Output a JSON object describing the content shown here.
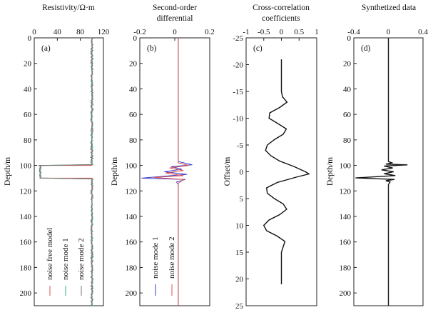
{
  "figure": {
    "caption_hidden": true
  },
  "chart_data": [
    {
      "id": "a",
      "type": "line",
      "panel_label": "(a)",
      "title": "Resistivity/Ω·m",
      "title2": "",
      "ylabel": "Depth/m",
      "xlim": [
        0,
        120
      ],
      "ylim": [
        0,
        210
      ],
      "xticks": [
        "0",
        "40",
        "80",
        "120"
      ],
      "xtick_values": [
        0,
        40,
        80,
        120
      ],
      "yticks": [
        "0",
        "20",
        "40",
        "60",
        "80",
        "100",
        "120",
        "140",
        "160",
        "180",
        "200"
      ],
      "ytick_values": [
        0,
        20,
        40,
        60,
        80,
        100,
        120,
        140,
        160,
        180,
        200
      ],
      "series": [
        {
          "name": "noise free model",
          "color": "#d9534f",
          "points": [
            [
              100,
              0
            ],
            [
              100,
              100
            ],
            [
              10,
              100
            ],
            [
              10,
              110
            ],
            [
              100,
              110
            ],
            [
              100,
              210
            ]
          ]
        },
        {
          "name": "noise mode 1",
          "color": "#3aaa8a",
          "base": 100,
          "noise": 1.6,
          "from": 0,
          "to": 210,
          "dip": [
            100,
            110,
            10
          ]
        },
        {
          "name": "noise mode 2",
          "color": "#777777",
          "base": 100,
          "noise": 2.2,
          "from": 0,
          "to": 210,
          "dip": [
            100,
            110,
            10
          ]
        }
      ]
    },
    {
      "id": "b",
      "type": "line",
      "panel_label": "(b)",
      "title": "Second-order",
      "title2": "differential",
      "ylabel": "Depth/m",
      "xlim": [
        -0.2,
        0.2
      ],
      "ylim": [
        0,
        210
      ],
      "xticks": [
        "-0.2",
        "0",
        "0.2"
      ],
      "xtick_values": [
        -0.2,
        0,
        0.2
      ],
      "yticks": [
        "0",
        "20",
        "40",
        "60",
        "80",
        "100",
        "120",
        "140",
        "160",
        "180",
        "200"
      ],
      "ytick_values": [
        0,
        20,
        40,
        60,
        80,
        100,
        120,
        140,
        160,
        180,
        200
      ],
      "series": [
        {
          "name": "noise mode 1",
          "color": "#3b3bd0",
          "points": [
            [
              0.02,
              0
            ],
            [
              0.02,
              97
            ],
            [
              0.1,
              99.5
            ],
            [
              -0.02,
              101
            ],
            [
              0.04,
              103
            ],
            [
              -0.06,
              105
            ],
            [
              0.07,
              107
            ],
            [
              -0.19,
              110
            ],
            [
              0.06,
              111
            ],
            [
              0.01,
              113
            ],
            [
              0.02,
              115
            ],
            [
              0.02,
              210
            ]
          ]
        },
        {
          "name": "noise mode 2",
          "color": "#d9534f",
          "points": [
            [
              0.02,
              0
            ],
            [
              0.02,
              98
            ],
            [
              0.08,
              100
            ],
            [
              -0.03,
              102
            ],
            [
              0.05,
              104
            ],
            [
              -0.05,
              106
            ],
            [
              0.05,
              108
            ],
            [
              -0.12,
              109.5
            ],
            [
              0.05,
              111
            ],
            [
              0.02,
              114
            ],
            [
              0.02,
              210
            ]
          ]
        }
      ]
    },
    {
      "id": "c",
      "type": "line",
      "panel_label": "(c)",
      "title": "Cross-correlation",
      "title2": "coefficients",
      "ylabel": "Offset/m",
      "xlim": [
        -1,
        1
      ],
      "ylim": [
        -25,
        25
      ],
      "xticks": [
        "-1",
        "-0.5",
        "0",
        "0.5",
        "1"
      ],
      "xtick_values": [
        -1,
        -0.5,
        0,
        0.5,
        1
      ],
      "yticks": [
        "-25",
        "-20",
        "-15",
        "-10",
        "-5",
        "0",
        "5",
        "10",
        "15",
        "20",
        "25"
      ],
      "ytick_values": [
        -25,
        -20,
        -15,
        -10,
        -5,
        0,
        5,
        10,
        15,
        20,
        25
      ],
      "series": [
        {
          "name": "correlation",
          "color": "#111111",
          "points": [
            [
              0,
              -21
            ],
            [
              0,
              -15
            ],
            [
              0.03,
              -14
            ],
            [
              0.16,
              -13
            ],
            [
              -0.05,
              -12
            ],
            [
              -0.33,
              -11
            ],
            [
              -0.35,
              -10
            ],
            [
              -0.1,
              -9
            ],
            [
              0.14,
              -8
            ],
            [
              0.05,
              -7
            ],
            [
              -0.2,
              -6
            ],
            [
              -0.4,
              -5
            ],
            [
              -0.45,
              -4
            ],
            [
              -0.3,
              -3
            ],
            [
              -0.05,
              -2
            ],
            [
              0.35,
              -1
            ],
            [
              0.68,
              0
            ],
            [
              0.78,
              0.4
            ],
            [
              0.42,
              1
            ],
            [
              -0.12,
              2
            ],
            [
              -0.42,
              3
            ],
            [
              -0.4,
              4
            ],
            [
              -0.2,
              5
            ],
            [
              0.05,
              6
            ],
            [
              0.15,
              7
            ],
            [
              -0.05,
              8
            ],
            [
              -0.35,
              9
            ],
            [
              -0.5,
              10
            ],
            [
              -0.42,
              11
            ],
            [
              -0.12,
              12
            ],
            [
              0.1,
              13
            ],
            [
              0.05,
              14
            ],
            [
              0,
              15
            ],
            [
              0,
              21
            ]
          ]
        }
      ]
    },
    {
      "id": "d",
      "type": "line",
      "panel_label": "(d)",
      "title": "Synthetized data",
      "title2": "",
      "ylabel": "Depth/m",
      "xlim": [
        -0.4,
        0.4
      ],
      "ylim": [
        0,
        210
      ],
      "xticks": [
        "-0.4",
        "0",
        "0.4"
      ],
      "xtick_values": [
        -0.4,
        0,
        0.4
      ],
      "yticks": [
        "0",
        "20",
        "40",
        "60",
        "80",
        "100",
        "120",
        "140",
        "160",
        "180",
        "200"
      ],
      "ytick_values": [
        0,
        20,
        40,
        60,
        80,
        100,
        120,
        140,
        160,
        180,
        200
      ],
      "series": [
        {
          "name": "synthetized",
          "color": "#111111",
          "points": [
            [
              0,
              0
            ],
            [
              0,
              97
            ],
            [
              0.04,
              98
            ],
            [
              -0.03,
              99
            ],
            [
              0.22,
              99.6
            ],
            [
              -0.05,
              100.5
            ],
            [
              0.05,
              102
            ],
            [
              -0.08,
              103.5
            ],
            [
              0.06,
              105
            ],
            [
              -0.05,
              106.5
            ],
            [
              0.08,
              108
            ],
            [
              -0.38,
              109.8
            ],
            [
              0.07,
              111
            ],
            [
              -0.03,
              112
            ],
            [
              0.02,
              113
            ],
            [
              0,
              115
            ],
            [
              0,
              210
            ]
          ]
        }
      ]
    }
  ]
}
